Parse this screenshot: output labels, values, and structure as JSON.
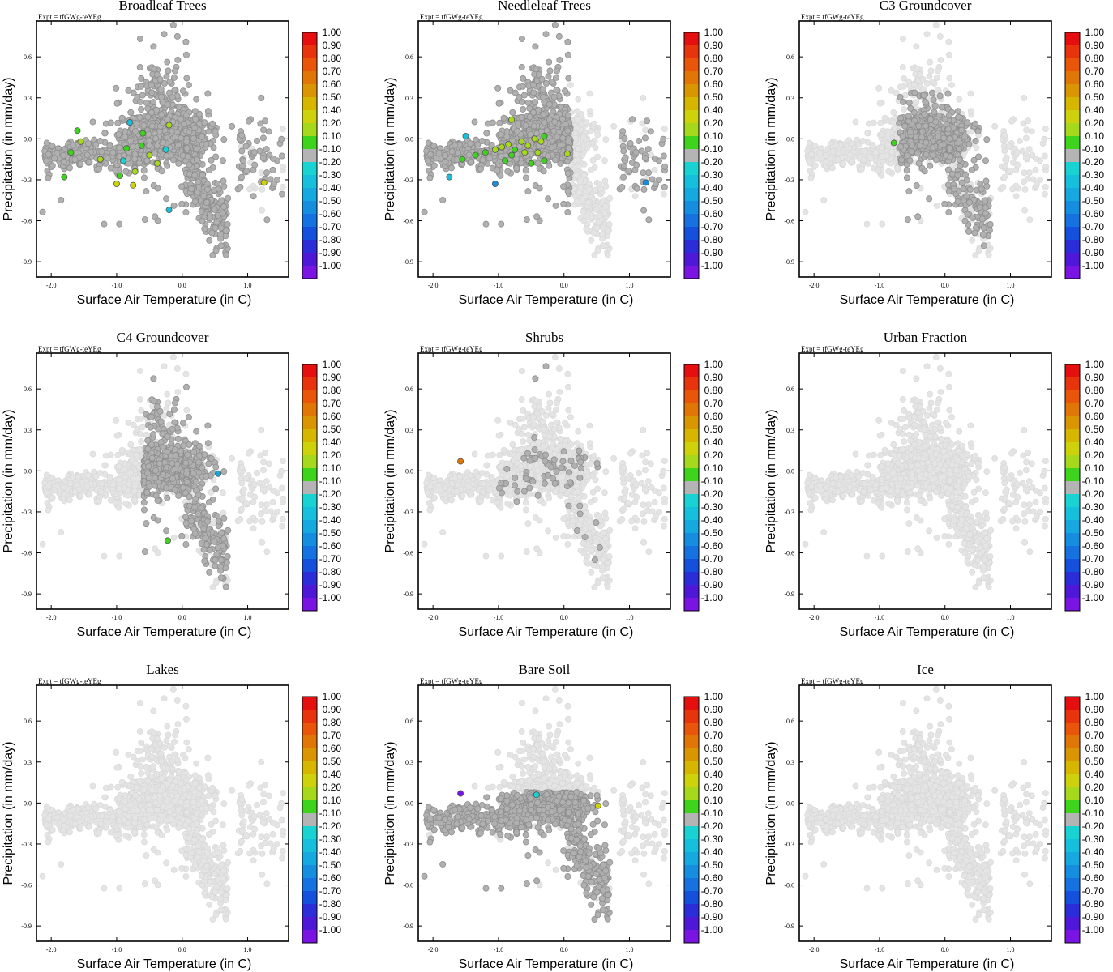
{
  "figure": {
    "expt_label": "Expt = tfGWg-teYEg",
    "xlabel": "Surface Air Temperature (in C)",
    "ylabel": "Precipitation (in mm/day)",
    "xlim": [
      -2.2,
      1.6
    ],
    "ylim": [
      -1.0,
      0.85
    ],
    "xticks": [
      -2.0,
      -1.0,
      0.0,
      1.0
    ],
    "xtick_labels": [
      "-2.0",
      "-1.0",
      "0.0",
      "1.0"
    ],
    "yticks": [
      0.6,
      0.3,
      0.0,
      -0.3,
      -0.6,
      -0.9
    ],
    "ytick_labels": [
      "0.6",
      "0.3",
      "0.0",
      "-0.3",
      "-0.6",
      "-0.9"
    ]
  },
  "colorbar": {
    "labels": [
      "1.00",
      "0.90",
      "0.80",
      "0.70",
      "0.60",
      "0.50",
      "0.40",
      "0.20",
      "0.10",
      "-0.10",
      "-0.20",
      "-0.30",
      "-0.40",
      "-0.50",
      "-0.60",
      "-0.70",
      "-0.80",
      "-0.90",
      "-1.00"
    ],
    "colors": [
      "#e60f0f",
      "#e8340c",
      "#e95509",
      "#e07606",
      "#da9602",
      "#d7b600",
      "#cdd20a",
      "#a6d81c",
      "#3ed41e",
      "#b4b4b4",
      "#19d2d2",
      "#16c0dc",
      "#15a9e0",
      "#168ee0",
      "#1672e0",
      "#1450dc",
      "#2a2dd8",
      "#4f17d8",
      "#7a14e2"
    ],
    "background_gray": "#e4e4e4",
    "neutral_gray": "#b0b0b0"
  },
  "chart_data": [
    {
      "type": "scatter",
      "title": "Broadleaf Trees",
      "xlabel": "Surface Air Temperature (in C)",
      "ylabel": "Precipitation (in mm/day)",
      "xlim": [
        -2.2,
        1.6
      ],
      "ylim": [
        -1.0,
        0.85
      ],
      "highlight": [
        [
          -1.6,
          0.06
        ],
        [
          -1.55,
          -0.02
        ],
        [
          -1.7,
          -0.1
        ],
        [
          -1.8,
          -0.28
        ],
        [
          -1.25,
          -0.15
        ],
        [
          -1.0,
          -0.33
        ],
        [
          -0.95,
          -0.27
        ],
        [
          -0.85,
          -0.07
        ],
        [
          -0.75,
          -0.34
        ],
        [
          -0.72,
          -0.24
        ],
        [
          -0.62,
          -0.05
        ],
        [
          -0.5,
          -0.12
        ],
        [
          -0.38,
          -0.18
        ],
        [
          -0.25,
          -0.08
        ],
        [
          -0.2,
          -0.52
        ],
        [
          -0.2,
          0.1
        ],
        [
          -0.8,
          0.12
        ],
        [
          1.25,
          -0.32
        ],
        [
          -0.9,
          -0.16
        ],
        [
          -0.6,
          0.04
        ]
      ],
      "highlight_values": [
        0.1,
        0.2,
        0.1,
        0.1,
        0.2,
        0.4,
        0.1,
        0.1,
        0.4,
        0.2,
        0.1,
        0.2,
        0.2,
        -0.2,
        -0.3,
        0.2,
        -0.3,
        0.4,
        -0.2,
        0.1
      ]
    },
    {
      "type": "scatter",
      "title": "Needleleaf Trees",
      "xlabel": "Surface Air Temperature (in C)",
      "ylabel": "Precipitation (in mm/day)",
      "xlim": [
        -2.2,
        1.6
      ],
      "ylim": [
        -1.0,
        0.85
      ],
      "highlight": [
        [
          -1.75,
          -0.28
        ],
        [
          -1.05,
          -0.33
        ],
        [
          1.25,
          -0.32
        ],
        [
          -1.55,
          -0.15
        ],
        [
          -1.35,
          -0.12
        ],
        [
          -1.2,
          -0.1
        ],
        [
          -1.05,
          -0.08
        ],
        [
          -0.95,
          -0.06
        ],
        [
          -0.85,
          -0.04
        ],
        [
          -0.75,
          -0.08
        ],
        [
          -0.65,
          -0.02
        ],
        [
          -0.55,
          -0.05
        ],
        [
          -0.45,
          0.0
        ],
        [
          -0.35,
          -0.02
        ],
        [
          -0.3,
          0.02
        ],
        [
          -0.4,
          -0.1
        ],
        [
          -0.6,
          -0.1
        ],
        [
          -0.8,
          -0.12
        ],
        [
          -0.5,
          -0.18
        ],
        [
          -0.3,
          -0.16
        ],
        [
          -0.9,
          -0.16
        ],
        [
          -0.8,
          0.14
        ],
        [
          0.05,
          -0.11
        ],
        [
          -1.5,
          0.02
        ]
      ],
      "highlight_values": [
        -0.3,
        -0.5,
        -0.5,
        0.1,
        0.1,
        0.1,
        0.2,
        0.2,
        0.2,
        0.1,
        0.2,
        0.2,
        0.2,
        0.2,
        0.1,
        0.2,
        0.2,
        0.1,
        0.1,
        0.1,
        0.1,
        0.2,
        0.2,
        -0.3
      ]
    },
    {
      "type": "scatter",
      "title": "C3 Groundcover",
      "xlabel": "Surface Air Temperature (in C)",
      "ylabel": "Precipitation (in mm/day)",
      "xlim": [
        -2.2,
        1.6
      ],
      "ylim": [
        -1.0,
        0.85
      ],
      "highlight": [
        [
          -0.78,
          -0.03
        ]
      ],
      "highlight_values": [
        0.1
      ]
    },
    {
      "type": "scatter",
      "title": "C4 Groundcover",
      "xlabel": "Surface Air Temperature (in C)",
      "ylabel": "Precipitation (in mm/day)",
      "xlim": [
        -2.2,
        1.6
      ],
      "ylim": [
        -1.0,
        0.85
      ],
      "highlight": [
        [
          0.55,
          -0.02
        ],
        [
          -0.22,
          -0.51
        ]
      ],
      "highlight_values": [
        -0.4,
        0.1
      ]
    },
    {
      "type": "scatter",
      "title": "Shrubs",
      "xlabel": "Surface Air Temperature (in C)",
      "ylabel": "Precipitation (in mm/day)",
      "xlim": [
        -2.2,
        1.6
      ],
      "ylim": [
        -1.0,
        0.85
      ],
      "highlight": [
        [
          -1.58,
          0.07
        ]
      ],
      "highlight_values": [
        0.7
      ]
    },
    {
      "type": "scatter",
      "title": "Urban Fraction",
      "xlabel": "Surface Air Temperature (in C)",
      "ylabel": "Precipitation (in mm/day)",
      "xlim": [
        -2.2,
        1.6
      ],
      "ylim": [
        -1.0,
        0.85
      ],
      "highlight": [],
      "highlight_values": []
    },
    {
      "type": "scatter",
      "title": "Lakes",
      "xlabel": "Surface Air Temperature (in C)",
      "ylabel": "Precipitation (in mm/day)",
      "xlim": [
        -2.2,
        1.6
      ],
      "ylim": [
        -1.0,
        0.85
      ],
      "highlight": [],
      "highlight_values": []
    },
    {
      "type": "scatter",
      "title": "Bare Soil",
      "xlabel": "Surface Air Temperature (in C)",
      "ylabel": "Precipitation (in mm/day)",
      "xlim": [
        -2.2,
        1.6
      ],
      "ylim": [
        -1.0,
        0.85
      ],
      "highlight": [
        [
          -1.58,
          0.07
        ],
        [
          -0.42,
          0.06
        ],
        [
          0.52,
          -0.02
        ]
      ],
      "highlight_values": [
        -1.0,
        -0.2,
        0.4
      ]
    },
    {
      "type": "scatter",
      "title": "Ice",
      "xlabel": "Surface Air Temperature (in C)",
      "ylabel": "Precipitation (in mm/day)",
      "xlim": [
        -2.2,
        1.6
      ],
      "ylim": [
        -1.0,
        0.85
      ],
      "highlight": [],
      "highlight_values": []
    }
  ]
}
